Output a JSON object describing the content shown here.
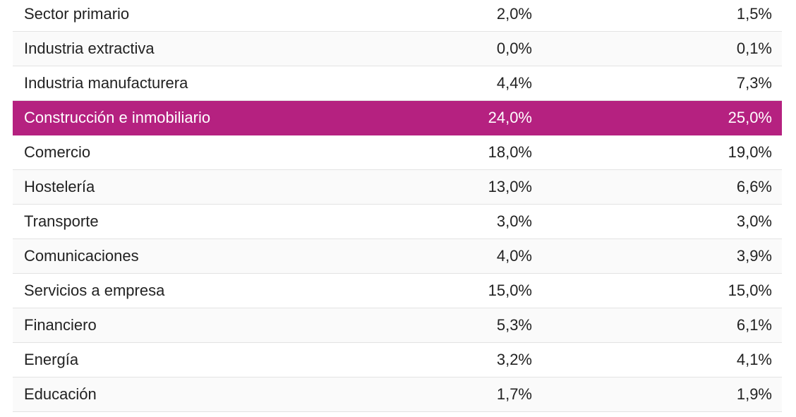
{
  "table": {
    "rows": [
      [
        "Sector primario",
        "2,0%",
        "1,5%"
      ],
      [
        "Industria extractiva",
        "0,0%",
        "0,1%"
      ],
      [
        "Industria manufacturera",
        "4,4%",
        "7,3%"
      ],
      [
        "Construcción e inmobiliario",
        "24,0%",
        "25,0%"
      ],
      [
        "Comercio",
        "18,0%",
        "19,0%"
      ],
      [
        "Hostelería",
        "13,0%",
        "6,6%"
      ],
      [
        "Transporte",
        "3,0%",
        "3,0%"
      ],
      [
        "Comunicaciones",
        "4,0%",
        "3,9%"
      ],
      [
        "Servicios a empresa",
        "15,0%",
        "15,0%"
      ],
      [
        "Financiero",
        "5,3%",
        "6,1%"
      ],
      [
        "Energía",
        "3,2%",
        "4,1%"
      ],
      [
        "Educación",
        "1,7%",
        "1,9%"
      ]
    ]
  }
}
